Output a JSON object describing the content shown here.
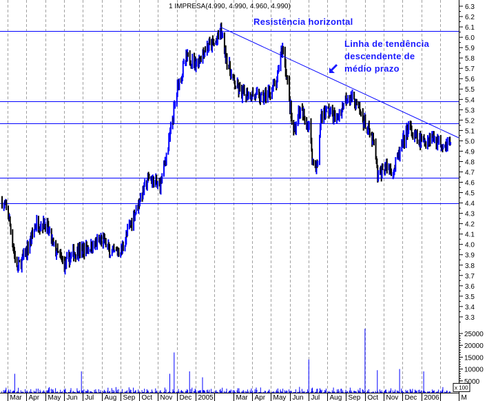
{
  "chart_data": {
    "type": "ohlc-bar",
    "title": "1 IMPRESA(4.990, 4.990, 4.960, 4.990)",
    "colors": {
      "up": "#0000ff",
      "down": "#000000",
      "lines": "#0000ff",
      "grid": "#a0a0a0",
      "annotation": "#1a1aff"
    },
    "price_axis": {
      "range": [
        3.3,
        6.3
      ],
      "ticks": [
        "6.3",
        "6.2",
        "6.1",
        "6.0",
        "5.9",
        "5.8",
        "5.7",
        "5.6",
        "5.5",
        "5.4",
        "5.3",
        "5.2",
        "5.1",
        "5.0",
        "4.9",
        "4.8",
        "4.7",
        "4.6",
        "4.5",
        "4.4",
        "4.3",
        "4.2",
        "4.1",
        "4.0",
        "3.9",
        "3.8",
        "3.7",
        "3.6",
        "3.5",
        "3.4",
        "3.3"
      ],
      "side": "right"
    },
    "volume_axis": {
      "range": [
        0,
        25000
      ],
      "ticks": [
        "25000",
        "20000",
        "15000",
        "10000",
        "5000"
      ],
      "unit_label": "x 100"
    },
    "x_axis": {
      "labels": [
        "Mar",
        "Apr",
        "May",
        "Jun",
        "Jul",
        "Aug",
        "Sep",
        "Oct",
        "Nov",
        "Dec",
        "2005",
        "",
        "Mar",
        "Apr",
        "May",
        "Jun",
        "Jul",
        "Aug",
        "Sep",
        "Oct",
        "Nov",
        "Dec",
        "2006",
        "",
        "M"
      ],
      "start": "2004-03-01"
    },
    "approx_closes": [
      [
        "2004-02-20",
        4.42
      ],
      [
        "2004-03-01",
        4.3
      ],
      [
        "2004-03-15",
        3.75
      ],
      [
        "2004-04-01",
        3.95
      ],
      [
        "2004-04-15",
        4.2
      ],
      [
        "2004-05-01",
        4.2
      ],
      [
        "2004-05-15",
        3.95
      ],
      [
        "2004-06-01",
        3.8
      ],
      [
        "2004-06-15",
        3.92
      ],
      [
        "2004-07-01",
        3.95
      ],
      [
        "2004-07-15",
        3.98
      ],
      [
        "2004-08-01",
        4.05
      ],
      [
        "2004-08-15",
        3.9
      ],
      [
        "2004-09-01",
        3.95
      ],
      [
        "2004-09-15",
        4.2
      ],
      [
        "2004-10-01",
        4.45
      ],
      [
        "2004-10-15",
        4.65
      ],
      [
        "2004-11-01",
        4.55
      ],
      [
        "2004-11-15",
        4.95
      ],
      [
        "2004-12-01",
        5.55
      ],
      [
        "2004-12-15",
        5.8
      ],
      [
        "2005-01-01",
        5.75
      ],
      [
        "2005-01-15",
        5.9
      ],
      [
        "2005-02-01",
        5.95
      ],
      [
        "2005-02-08",
        6.08
      ],
      [
        "2005-02-15",
        5.85
      ],
      [
        "2005-03-01",
        5.55
      ],
      [
        "2005-03-15",
        5.45
      ],
      [
        "2005-04-01",
        5.45
      ],
      [
        "2005-04-15",
        5.4
      ],
      [
        "2005-05-01",
        5.5
      ],
      [
        "2005-05-10",
        5.55
      ],
      [
        "2005-05-15",
        5.85
      ],
      [
        "2005-05-20",
        5.9
      ],
      [
        "2005-06-01",
        5.3
      ],
      [
        "2005-06-05",
        5.05
      ],
      [
        "2005-06-15",
        5.3
      ],
      [
        "2005-07-01",
        5.15
      ],
      [
        "2005-07-07",
        4.8
      ],
      [
        "2005-07-15",
        4.75
      ],
      [
        "2005-07-20",
        5.25
      ],
      [
        "2005-08-01",
        5.3
      ],
      [
        "2005-08-15",
        5.2
      ],
      [
        "2005-09-01",
        5.45
      ],
      [
        "2005-09-15",
        5.35
      ],
      [
        "2005-10-01",
        5.15
      ],
      [
        "2005-10-15",
        4.95
      ],
      [
        "2005-10-20",
        4.65
      ],
      [
        "2005-11-01",
        4.75
      ],
      [
        "2005-11-15",
        4.72
      ],
      [
        "2005-12-01",
        5.0
      ],
      [
        "2005-12-10",
        5.15
      ],
      [
        "2005-12-15",
        5.05
      ],
      [
        "2006-01-01",
        4.98
      ],
      [
        "2006-01-15",
        5.05
      ],
      [
        "2006-02-01",
        4.97
      ],
      [
        "2006-02-15",
        4.99
      ]
    ],
    "last_bar": {
      "open": 4.99,
      "high": 4.99,
      "low": 4.96,
      "close": 4.99
    },
    "volume_spikes": [
      [
        "2004-03-12",
        8000
      ],
      [
        "2004-06-28",
        9000
      ],
      [
        "2004-11-18",
        8000
      ],
      [
        "2004-11-25",
        17000
      ],
      [
        "2004-12-20",
        9000
      ],
      [
        "2005-01-11",
        6500
      ],
      [
        "2005-07-01",
        14000
      ],
      [
        "2005-09-30",
        27000
      ],
      [
        "2005-10-20",
        9500
      ],
      [
        "2005-11-26",
        10000
      ],
      [
        "2006-01-04",
        9000
      ]
    ],
    "horizontal_lines": [
      6.06,
      5.38,
      5.17,
      4.645,
      4.4
    ],
    "trendline": {
      "from": [
        "2005-02-08",
        6.1
      ],
      "to": [
        "2006-03-01",
        5.03
      ]
    },
    "annotations": {
      "resistance": "Resistência horizontal",
      "trend_line_1": "Linha de tendência",
      "trend_line_2": "descendente de",
      "trend_line_3": "médio prazo"
    }
  }
}
